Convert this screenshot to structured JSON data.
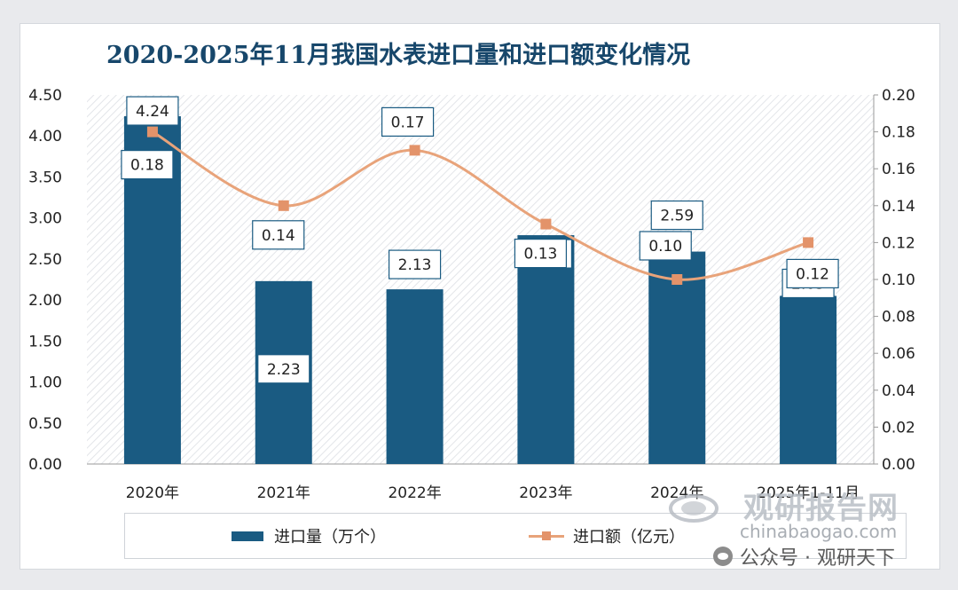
{
  "chart_data": {
    "type": "bar",
    "title": "2020-2025年11月我国水表进口量和进口额变化情况",
    "categories": [
      "2020年",
      "2021年",
      "2022年",
      "2023年",
      "2024年",
      "2025年1-11月"
    ],
    "series": [
      {
        "name": "进口量（万个）",
        "type": "bar",
        "axis": "left",
        "values": [
          4.24,
          2.23,
          2.13,
          2.79,
          2.59,
          2.05
        ],
        "labels": [
          "4.24",
          "2.23",
          "2.13",
          "2.79",
          "2.59",
          "2.05"
        ]
      },
      {
        "name": "进口额（亿元）",
        "type": "line",
        "axis": "right",
        "values": [
          0.18,
          0.14,
          0.17,
          0.13,
          0.1,
          0.12
        ],
        "labels": [
          "0.18",
          "0.14",
          "0.17",
          "0.13",
          "0.10",
          "0.12"
        ]
      }
    ],
    "yleft": {
      "min": 0,
      "max": 4.5,
      "ticks": [
        "0.00",
        "0.50",
        "1.00",
        "1.50",
        "2.00",
        "2.50",
        "3.00",
        "3.50",
        "4.00",
        "4.50"
      ]
    },
    "yright": {
      "min": 0,
      "max": 0.2,
      "ticks": [
        "0.00",
        "0.02",
        "0.04",
        "0.06",
        "0.08",
        "0.10",
        "0.12",
        "0.14",
        "0.16",
        "0.18",
        "0.20"
      ]
    },
    "colors": {
      "bar": "#1a5b82",
      "line": "#e8a37a",
      "marker": "#e3936a"
    },
    "legend_position": "bottom"
  },
  "watermark": {
    "brand": "观研报告网",
    "url": "chinabaogao.com",
    "wechat": "公众号 · 观研天下"
  }
}
